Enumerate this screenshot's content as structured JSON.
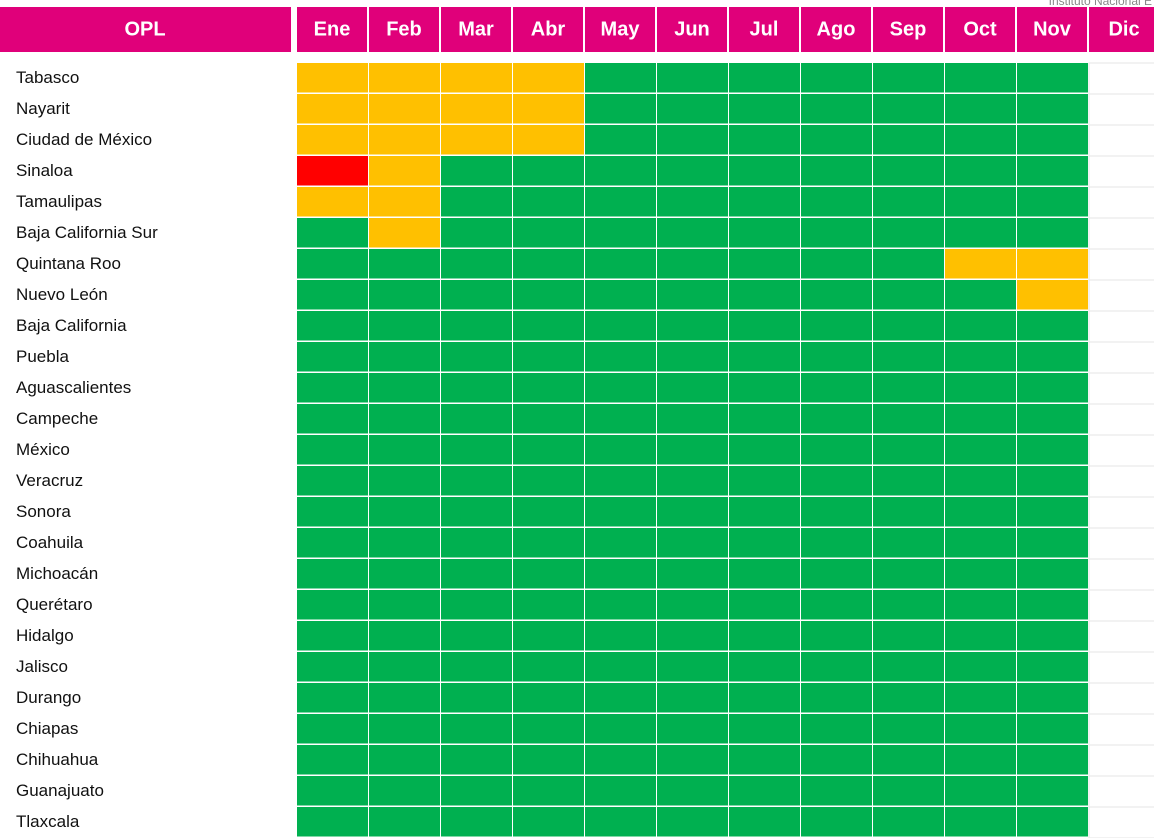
{
  "header": {
    "note": "Instituto Nacional E",
    "first": "OPL",
    "months": [
      "Ene",
      "Feb",
      "Mar",
      "Abr",
      "May",
      "Jun",
      "Jul",
      "Ago",
      "Sep",
      "Oct",
      "Nov",
      "Dic"
    ]
  },
  "table": {
    "rows": [
      {
        "name": "Tabasco",
        "cells": [
          "#FFC000",
          "#FFC000",
          "#FFC000",
          "#FFC000",
          "#00B050",
          "#00B050",
          "#00B050",
          "#00B050",
          "#00B050",
          "#00B050",
          "#00B050"
        ]
      },
      {
        "name": "Nayarit",
        "cells": [
          "#FFC000",
          "#FFC000",
          "#FFC000",
          "#FFC000",
          "#00B050",
          "#00B050",
          "#00B050",
          "#00B050",
          "#00B050",
          "#00B050",
          "#00B050"
        ]
      },
      {
        "name": "Ciudad de México",
        "cells": [
          "#FFC000",
          "#FFC000",
          "#FFC000",
          "#FFC000",
          "#00B050",
          "#00B050",
          "#00B050",
          "#00B050",
          "#00B050",
          "#00B050",
          "#00B050"
        ]
      },
      {
        "name": "Sinaloa",
        "cells": [
          "#FF0000",
          "#FFC000",
          "#00B050",
          "#00B050",
          "#00B050",
          "#00B050",
          "#00B050",
          "#00B050",
          "#00B050",
          "#00B050",
          "#00B050"
        ]
      },
      {
        "name": "Tamaulipas",
        "cells": [
          "#FFC000",
          "#FFC000",
          "#00B050",
          "#00B050",
          "#00B050",
          "#00B050",
          "#00B050",
          "#00B050",
          "#00B050",
          "#00B050",
          "#00B050"
        ]
      },
      {
        "name": "Baja California Sur",
        "cells": [
          "#00B050",
          "#FFC000",
          "#00B050",
          "#00B050",
          "#00B050",
          "#00B050",
          "#00B050",
          "#00B050",
          "#00B050",
          "#00B050",
          "#00B050"
        ]
      },
      {
        "name": "Quintana Roo",
        "cells": [
          "#00B050",
          "#00B050",
          "#00B050",
          "#00B050",
          "#00B050",
          "#00B050",
          "#00B050",
          "#00B050",
          "#00B050",
          "#FFC000",
          "#FFC000"
        ]
      },
      {
        "name": "Nuevo León",
        "cells": [
          "#00B050",
          "#00B050",
          "#00B050",
          "#00B050",
          "#00B050",
          "#00B050",
          "#00B050",
          "#00B050",
          "#00B050",
          "#00B050",
          "#FFC000"
        ]
      },
      {
        "name": "Baja California",
        "cells": [
          "#00B050",
          "#00B050",
          "#00B050",
          "#00B050",
          "#00B050",
          "#00B050",
          "#00B050",
          "#00B050",
          "#00B050",
          "#00B050",
          "#00B050"
        ]
      },
      {
        "name": "Puebla",
        "cells": [
          "#00B050",
          "#00B050",
          "#00B050",
          "#00B050",
          "#00B050",
          "#00B050",
          "#00B050",
          "#00B050",
          "#00B050",
          "#00B050",
          "#00B050"
        ]
      },
      {
        "name": "Aguascalientes",
        "cells": [
          "#00B050",
          "#00B050",
          "#00B050",
          "#00B050",
          "#00B050",
          "#00B050",
          "#00B050",
          "#00B050",
          "#00B050",
          "#00B050",
          "#00B050"
        ]
      },
      {
        "name": "Campeche",
        "cells": [
          "#00B050",
          "#00B050",
          "#00B050",
          "#00B050",
          "#00B050",
          "#00B050",
          "#00B050",
          "#00B050",
          "#00B050",
          "#00B050",
          "#00B050"
        ]
      },
      {
        "name": "México",
        "cells": [
          "#00B050",
          "#00B050",
          "#00B050",
          "#00B050",
          "#00B050",
          "#00B050",
          "#00B050",
          "#00B050",
          "#00B050",
          "#00B050",
          "#00B050"
        ]
      },
      {
        "name": "Veracruz",
        "cells": [
          "#00B050",
          "#00B050",
          "#00B050",
          "#00B050",
          "#00B050",
          "#00B050",
          "#00B050",
          "#00B050",
          "#00B050",
          "#00B050",
          "#00B050"
        ]
      },
      {
        "name": "Sonora",
        "cells": [
          "#00B050",
          "#00B050",
          "#00B050",
          "#00B050",
          "#00B050",
          "#00B050",
          "#00B050",
          "#00B050",
          "#00B050",
          "#00B050",
          "#00B050"
        ]
      },
      {
        "name": "Coahuila",
        "cells": [
          "#00B050",
          "#00B050",
          "#00B050",
          "#00B050",
          "#00B050",
          "#00B050",
          "#00B050",
          "#00B050",
          "#00B050",
          "#00B050",
          "#00B050"
        ]
      },
      {
        "name": "Michoacán",
        "cells": [
          "#00B050",
          "#00B050",
          "#00B050",
          "#00B050",
          "#00B050",
          "#00B050",
          "#00B050",
          "#00B050",
          "#00B050",
          "#00B050",
          "#00B050"
        ]
      },
      {
        "name": "Querétaro",
        "cells": [
          "#00B050",
          "#00B050",
          "#00B050",
          "#00B050",
          "#00B050",
          "#00B050",
          "#00B050",
          "#00B050",
          "#00B050",
          "#00B050",
          "#00B050"
        ]
      },
      {
        "name": "Hidalgo",
        "cells": [
          "#00B050",
          "#00B050",
          "#00B050",
          "#00B050",
          "#00B050",
          "#00B050",
          "#00B050",
          "#00B050",
          "#00B050",
          "#00B050",
          "#00B050"
        ]
      },
      {
        "name": "Jalisco",
        "cells": [
          "#00B050",
          "#00B050",
          "#00B050",
          "#00B050",
          "#00B050",
          "#00B050",
          "#00B050",
          "#00B050",
          "#00B050",
          "#00B050",
          "#00B050"
        ]
      },
      {
        "name": "Durango",
        "cells": [
          "#00B050",
          "#00B050",
          "#00B050",
          "#00B050",
          "#00B050",
          "#00B050",
          "#00B050",
          "#00B050",
          "#00B050",
          "#00B050",
          "#00B050"
        ]
      },
      {
        "name": "Chiapas",
        "cells": [
          "#00B050",
          "#00B050",
          "#00B050",
          "#00B050",
          "#00B050",
          "#00B050",
          "#00B050",
          "#00B050",
          "#00B050",
          "#00B050",
          "#00B050"
        ]
      },
      {
        "name": "Chihuahua",
        "cells": [
          "#00B050",
          "#00B050",
          "#00B050",
          "#00B050",
          "#00B050",
          "#00B050",
          "#00B050",
          "#00B050",
          "#00B050",
          "#00B050",
          "#00B050"
        ]
      },
      {
        "name": "Guanajuato",
        "cells": [
          "#00B050",
          "#00B050",
          "#00B050",
          "#00B050",
          "#00B050",
          "#00B050",
          "#00B050",
          "#00B050",
          "#00B050",
          "#00B050",
          "#00B050"
        ]
      },
      {
        "name": "Tlaxcala",
        "cells": [
          "#00B050",
          "#00B050",
          "#00B050",
          "#00B050",
          "#00B050",
          "#00B050",
          "#00B050",
          "#00B050",
          "#00B050",
          "#00B050",
          "#00B050"
        ]
      }
    ]
  }
}
